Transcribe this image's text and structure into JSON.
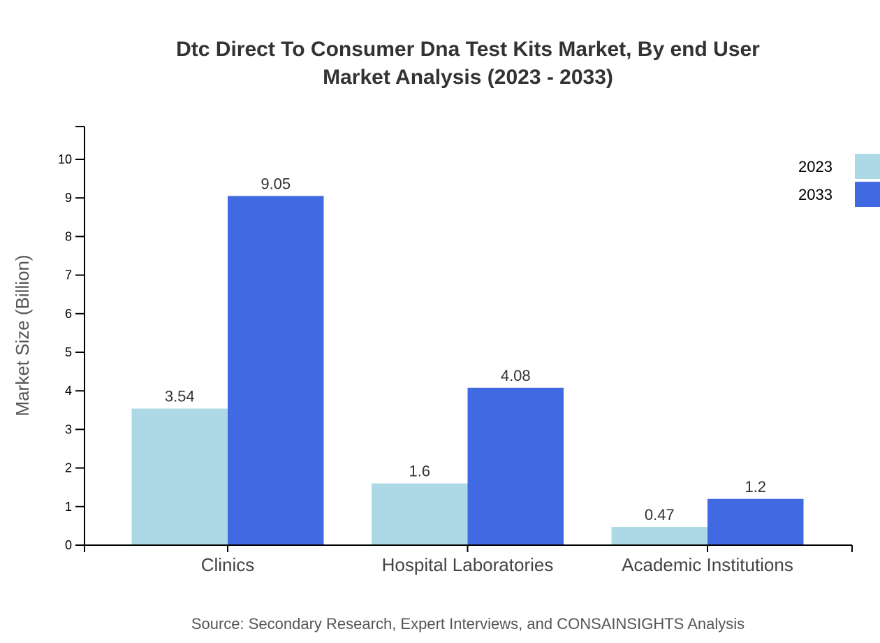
{
  "chart_data": {
    "type": "bar",
    "title": [
      "Dtc Direct To Consumer Dna Test Kits Market, By end User",
      "Market Analysis (2023 - 2033)"
    ],
    "xlabel": "",
    "ylabel": "Market Size (Billion)",
    "ylim": [
      0,
      10.85
    ],
    "yticks": [
      "0",
      "1",
      "2",
      "3",
      "4",
      "5",
      "6",
      "7",
      "8",
      "9",
      "10"
    ],
    "grid": false,
    "legend_position": "top-right",
    "categories": [
      "Clinics",
      "Hospital Laboratories",
      "Academic Institutions"
    ],
    "series": [
      {
        "name": "2023",
        "color": "#add8e6",
        "values": [
          3.54,
          1.6,
          0.47
        ],
        "labels": [
          "3.54",
          "1.6",
          "0.47"
        ]
      },
      {
        "name": "2033",
        "color": "#4169e1",
        "values": [
          9.05,
          4.08,
          1.2
        ],
        "labels": [
          "9.05",
          "4.08",
          "1.2"
        ]
      }
    ],
    "source": "Source: Secondary Research, Expert Interviews, and CONSAINSIGHTS Analysis"
  }
}
